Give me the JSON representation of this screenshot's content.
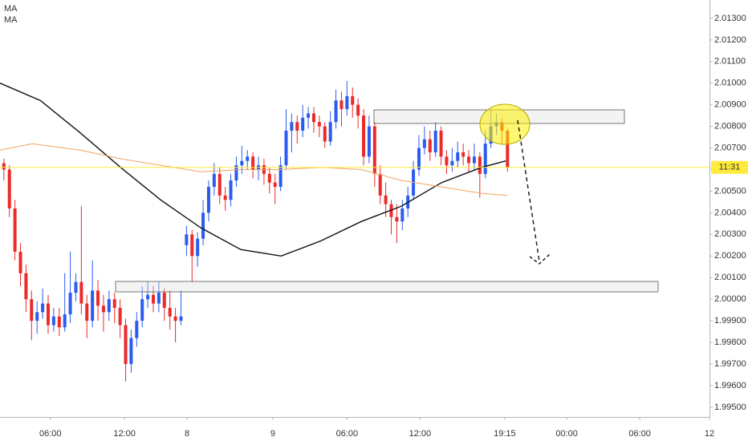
{
  "chart_data": {
    "type": "candlestick",
    "up_color": "#2b5cf0",
    "down_color": "#ec2a28",
    "xlim": [
      -0.7,
      127.5
    ],
    "ylim": [
      1.99455,
      2.01385
    ],
    "xticks": [
      {
        "value": 8.4,
        "label": "06:00"
      },
      {
        "value": 21.8,
        "label": "12:00"
      },
      {
        "value": 33.1,
        "label": "8"
      },
      {
        "value": 48.6,
        "label": "9"
      },
      {
        "value": 62.0,
        "label": "06:00"
      },
      {
        "value": 75.2,
        "label": "12:00"
      },
      {
        "value": 90.5,
        "label": "19:15"
      },
      {
        "value": 101.7,
        "label": "00:00"
      },
      {
        "value": 114.9,
        "label": "06:00"
      },
      {
        "value": 127.5,
        "label": "12"
      }
    ],
    "yticks": [
      {
        "value": 1.995,
        "label": "1.99500"
      },
      {
        "value": 1.996,
        "label": "1.99600"
      },
      {
        "value": 1.997,
        "label": "1.99700"
      },
      {
        "value": 1.998,
        "label": "1.99800"
      },
      {
        "value": 1.999,
        "label": "1.99900"
      },
      {
        "value": 2.0,
        "label": "2.00000"
      },
      {
        "value": 2.001,
        "label": "2.00100"
      },
      {
        "value": 2.002,
        "label": "2.00200"
      },
      {
        "value": 2.003,
        "label": "2.00300"
      },
      {
        "value": 2.004,
        "label": "2.00400"
      },
      {
        "value": 2.005,
        "label": "2.00500"
      },
      {
        "value": 2.006,
        "label": "2.00600"
      },
      {
        "value": 2.007,
        "label": "2.00700"
      },
      {
        "value": 2.008,
        "label": "2.00800"
      },
      {
        "value": 2.009,
        "label": "2.00900"
      },
      {
        "value": 2.01,
        "label": "2.01000"
      },
      {
        "value": 2.011,
        "label": "2.01100"
      },
      {
        "value": 2.012,
        "label": "2.01200"
      },
      {
        "value": 2.013,
        "label": "2.01300"
      }
    ],
    "countdown": "11:31",
    "countdown_color": "#ffeb3b",
    "candles": {
      "open": [
        2.0063,
        2.006,
        2.0042,
        2.0022,
        2.0012,
        2.0,
        1.999,
        1.9994,
        1.9998,
        1.9988,
        1.9992,
        1.9987,
        1.9993,
        2.0003,
        2.0008,
        1.9998,
        1.999,
        2.0004,
        1.9997,
        1.9994,
        2.0,
        1.9996,
        1.9988,
        1.997,
        1.9982,
        1.999,
        2.0,
        2.0002,
        1.9998,
        2.0003,
        1.9996,
        1.9992,
        1.999,
        2.0025,
        2.003,
        2.002,
        2.0028,
        2.004,
        2.0052,
        2.0058,
        2.0048,
        2.0046,
        2.0055,
        2.0062,
        2.0064,
        2.0066,
        2.006,
        2.0062,
        2.0058,
        2.0054,
        2.0052,
        2.0062,
        2.0078,
        2.0082,
        2.0078,
        2.0084,
        2.0086,
        2.0082,
        2.008,
        2.0073,
        2.0082,
        2.0092,
        2.0088,
        2.0094,
        2.009,
        2.0085,
        2.0066,
        2.008,
        2.0058,
        2.0048,
        2.0044,
        2.0038,
        2.0036,
        2.0042,
        2.0048,
        2.006,
        2.007,
        2.0074,
        2.0068,
        2.0078,
        2.0066,
        2.0062,
        2.0064,
        2.0068,
        2.0066,
        2.0063,
        2.0066,
        2.0058,
        2.0072,
        2.008,
        2.0082,
        2.0078
      ],
      "high": [
        2.0065,
        2.0062,
        2.0046,
        2.0026,
        2.0016,
        2.0004,
        1.9999,
        2.0005,
        2.0002,
        1.9996,
        1.9996,
        2.0012,
        2.0022,
        2.0012,
        2.0043,
        2.0002,
        2.0018,
        2.0009,
        2.0002,
        2.0004,
        2.0003,
        2.0,
        1.9991,
        1.9986,
        1.9994,
        2.0006,
        2.0008,
        2.0006,
        2.0008,
        2.0005,
        2.0004,
        1.9996,
        2.0004,
        2.0034,
        2.0032,
        2.0031,
        2.0046,
        2.0055,
        2.0063,
        2.0061,
        2.0052,
        2.0058,
        2.0066,
        2.0071,
        2.0069,
        2.0068,
        2.0066,
        2.0065,
        2.0061,
        2.0058,
        2.0066,
        2.0088,
        2.0086,
        2.0085,
        2.009,
        2.0089,
        2.0089,
        2.0085,
        2.0082,
        2.0087,
        2.0097,
        2.0096,
        2.0101,
        2.0098,
        2.0093,
        2.0088,
        2.0085,
        2.0082,
        2.0062,
        2.0054,
        2.0046,
        2.0044,
        2.0046,
        2.0052,
        2.0064,
        2.0076,
        2.008,
        2.0078,
        2.0082,
        2.008,
        2.0069,
        2.007,
        2.0073,
        2.0072,
        2.0069,
        2.0072,
        2.0068,
        2.0078,
        2.0088,
        2.0086,
        2.0084,
        2.0079
      ],
      "low": [
        2.0055,
        2.0038,
        2.0018,
        2.0006,
        1.9994,
        1.9981,
        1.9984,
        1.9991,
        1.9984,
        1.9985,
        1.9983,
        1.9985,
        1.9989,
        1.9999,
        1.9993,
        1.9982,
        1.9987,
        1.999,
        1.9985,
        1.999,
        1.9989,
        1.9982,
        1.9962,
        1.9966,
        1.9978,
        1.9987,
        1.9996,
        1.9994,
        1.9994,
        1.999,
        1.9986,
        1.998,
        1.9988,
        2.002,
        2.0008,
        2.0015,
        2.0025,
        2.0036,
        2.0048,
        2.0044,
        2.0041,
        2.0043,
        2.0052,
        2.0058,
        2.006,
        2.0056,
        2.0055,
        2.0053,
        2.0049,
        2.0044,
        2.005,
        2.006,
        2.0068,
        2.0072,
        2.0075,
        2.0079,
        2.0077,
        2.0075,
        2.007,
        2.0071,
        2.0079,
        2.008,
        2.0085,
        2.0084,
        2.0079,
        2.0062,
        2.0063,
        2.0052,
        2.0044,
        2.0038,
        2.003,
        2.0026,
        2.0032,
        2.0038,
        2.0046,
        2.0057,
        2.0067,
        2.0064,
        2.0066,
        2.0062,
        2.0058,
        2.0059,
        2.0061,
        2.0062,
        2.0059,
        2.006,
        2.0047,
        2.0056,
        2.007,
        2.0076,
        2.0072,
        2.0059
      ],
      "close": [
        2.006,
        2.0042,
        2.0022,
        2.0012,
        2.0,
        1.999,
        1.9994,
        1.9998,
        1.9988,
        1.9992,
        1.9987,
        1.9993,
        2.0003,
        2.0008,
        1.9998,
        1.999,
        2.0004,
        1.9997,
        1.9994,
        2.0,
        1.9996,
        1.9988,
        1.997,
        1.9982,
        1.999,
        2.0,
        2.0002,
        1.9998,
        2.0003,
        1.9996,
        1.9992,
        1.999,
        1.9992,
        2.003,
        2.002,
        2.0028,
        2.004,
        2.0052,
        2.0058,
        2.0048,
        2.0046,
        2.0055,
        2.0062,
        2.0064,
        2.0066,
        2.006,
        2.0062,
        2.0058,
        2.0054,
        2.0052,
        2.0062,
        2.0078,
        2.0082,
        2.0078,
        2.0084,
        2.0086,
        2.0082,
        2.008,
        2.0073,
        2.0082,
        2.0092,
        2.0088,
        2.0094,
        2.009,
        2.0085,
        2.0066,
        2.008,
        2.0058,
        2.0048,
        2.0044,
        2.0038,
        2.0036,
        2.0042,
        2.0048,
        2.006,
        2.007,
        2.0074,
        2.0068,
        2.0078,
        2.0066,
        2.0062,
        2.0064,
        2.0068,
        2.0066,
        2.0063,
        2.0066,
        2.0058,
        2.0072,
        2.008,
        2.0082,
        2.0078,
        2.0061
      ]
    },
    "series": [
      {
        "name": "MA",
        "color": "#111111",
        "x": [
          -0.7,
          6.6,
          13.8,
          21.1,
          28.3,
          35.6,
          42.8,
          50.1,
          57.3,
          64.6,
          71.8,
          79.1,
          86.3,
          90.7
        ],
        "values": [
          2.01,
          2.0092,
          2.0077,
          2.0061,
          2.0046,
          2.0033,
          2.0023,
          2.002,
          2.0027,
          2.0036,
          2.0043,
          2.0054,
          2.0061,
          2.0064
        ]
      },
      {
        "name": "MA",
        "color": "#f4a35c",
        "x": [
          -0.7,
          5.1,
          13.8,
          21.1,
          28.3,
          35.6,
          42.8,
          50.1,
          57.3,
          64.6,
          71.8,
          79.1,
          86.3,
          91.0
        ],
        "values": [
          2.0069,
          2.0072,
          2.0069,
          2.0065,
          2.0062,
          2.0059,
          2.006,
          2.006,
          2.0061,
          2.006,
          2.0055,
          2.0052,
          2.0049,
          2.0048
        ]
      }
    ]
  }
}
